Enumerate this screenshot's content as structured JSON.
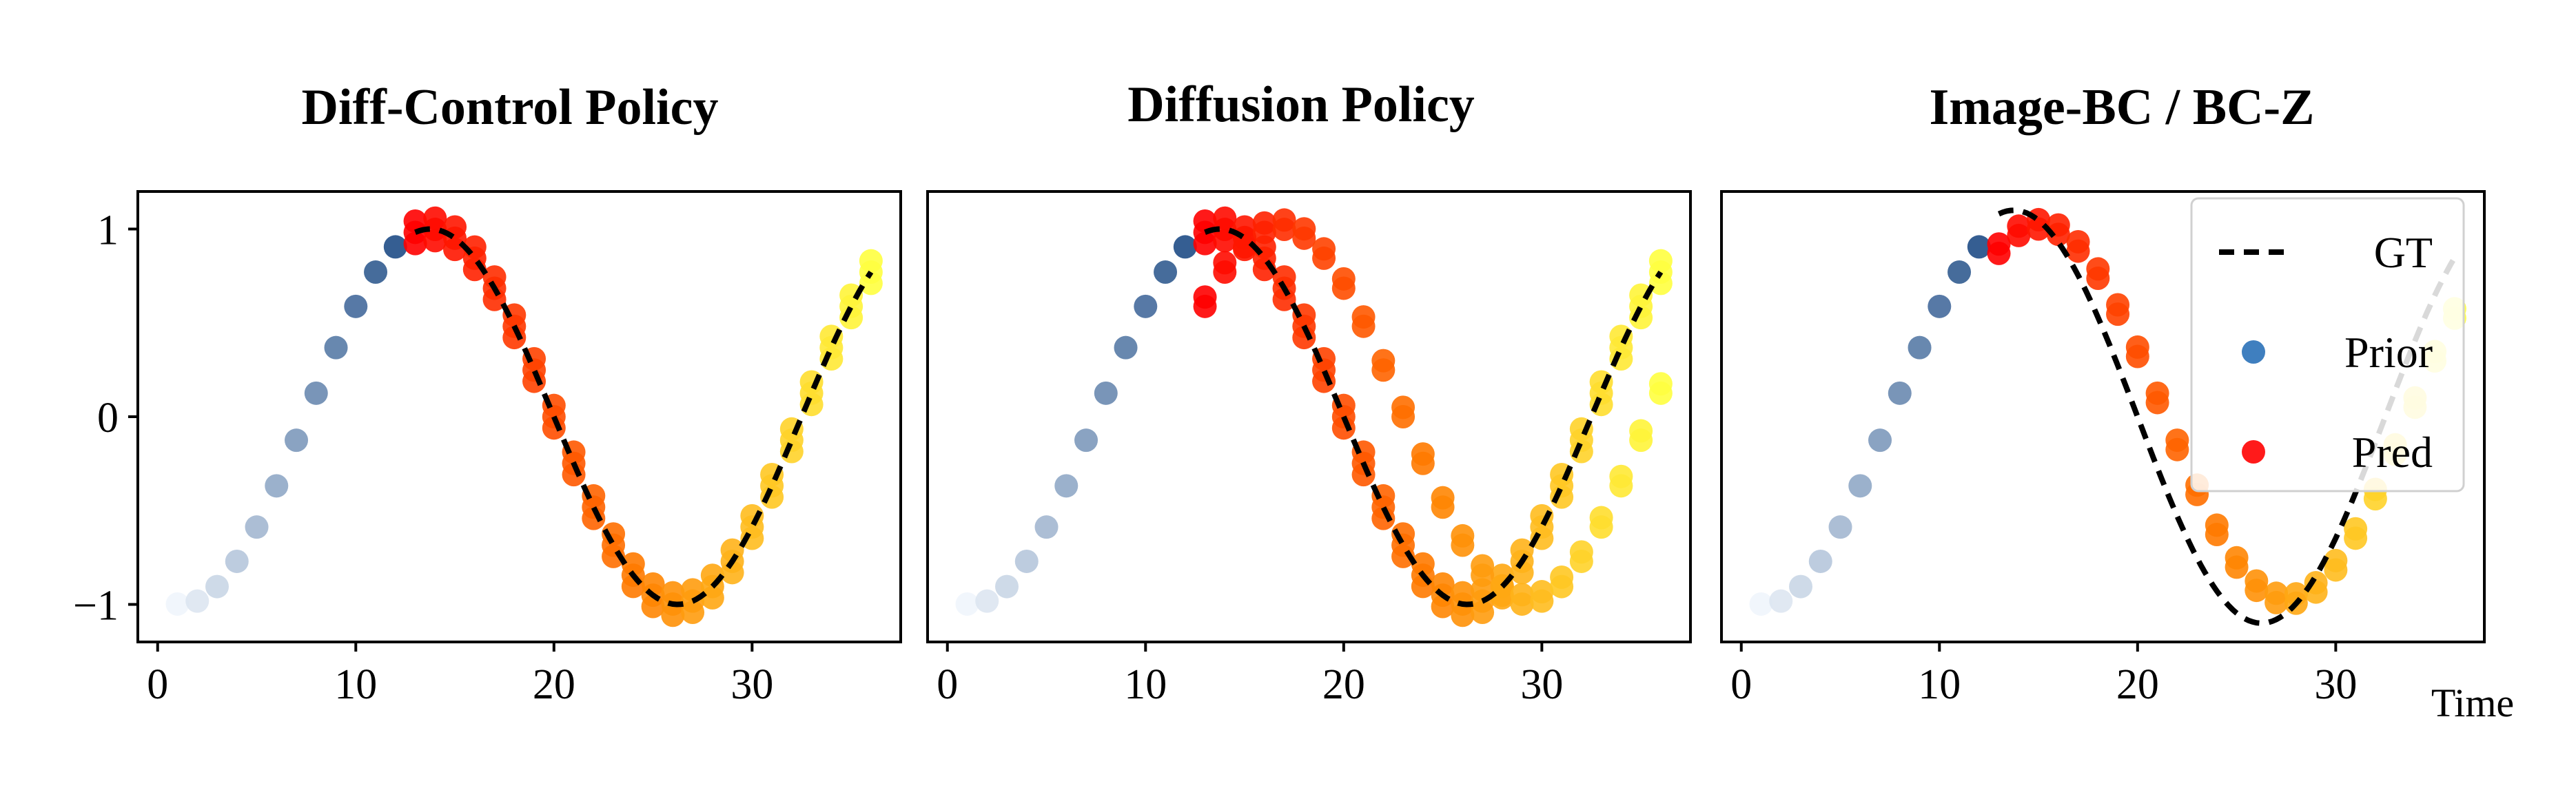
{
  "chart_data": [
    {
      "type": "scatter",
      "title": "Diff-Control Policy",
      "xlabel": "",
      "ylabel": "",
      "xlim": [
        -1,
        37.5
      ],
      "ylim": [
        -1.2,
        1.2
      ],
      "x_ticks": [
        0,
        10,
        20,
        30
      ],
      "y_ticks": [
        1,
        0,
        -1
      ],
      "x_tick_labels": [
        "0",
        "10",
        "20",
        "30"
      ],
      "y_tick_labels": [
        "1",
        "0",
        "−1"
      ],
      "prior": {
        "t_start": 1,
        "t_end": 12
      },
      "pred": {
        "t_start": 13,
        "t_end": 36,
        "offsets": [
          0,
          0.06,
          -0.06
        ]
      },
      "gt": {
        "t_start": 13,
        "t_end": 36
      }
    },
    {
      "type": "scatter",
      "title": "Diffusion Policy",
      "xlabel": "",
      "ylabel": "",
      "xlim": [
        -1,
        37.5
      ],
      "ylim": [
        -1.2,
        1.2
      ],
      "x_ticks": [
        0,
        10,
        20,
        30
      ],
      "x_tick_labels": [
        "0",
        "10",
        "20",
        "30"
      ],
      "prior": {
        "t_start": 1,
        "t_end": 12
      },
      "pred": {
        "t_start": 13,
        "t_end": 36,
        "offsets": [
          0,
          0.06,
          -0.06
        ],
        "branch": {
          "t_start": 13,
          "t_end": 36,
          "shift": -3
        }
      },
      "gt": {
        "t_start": 13,
        "t_end": 36
      }
    },
    {
      "type": "scatter",
      "title": "Image-BC / BC-Z",
      "xlabel": "Time",
      "ylabel": "",
      "xlim": [
        -1,
        37.5
      ],
      "ylim": [
        -1.2,
        1.2
      ],
      "x_ticks": [
        0,
        10,
        20,
        30
      ],
      "x_tick_labels": [
        "0",
        "10",
        "20",
        "30"
      ],
      "prior": {
        "t_start": 1,
        "t_end": 12
      },
      "pred": {
        "t_start": 13,
        "t_end": 36,
        "offsets": [
          0,
          0.05
        ],
        "shift": -1.3
      },
      "gt": {
        "t_start": 13,
        "t_end": 36,
        "amp": 1.1
      },
      "legend": {
        "position": "top-right",
        "entries": [
          {
            "label": "GT",
            "marker": "dashed-line",
            "color": "#000000"
          },
          {
            "label": "Prior",
            "marker": "dot",
            "color": "#3f7fbf"
          },
          {
            "label": "Pred",
            "marker": "dot",
            "color": "#ff1a1a"
          }
        ]
      }
    }
  ],
  "colors": {
    "gt": "#000000",
    "prior_start": "#eef4fb",
    "prior_end": "#12427f",
    "pred_start": "#ff0000",
    "pred_mid": "#ff8000",
    "pred_end": "#ffff40"
  }
}
